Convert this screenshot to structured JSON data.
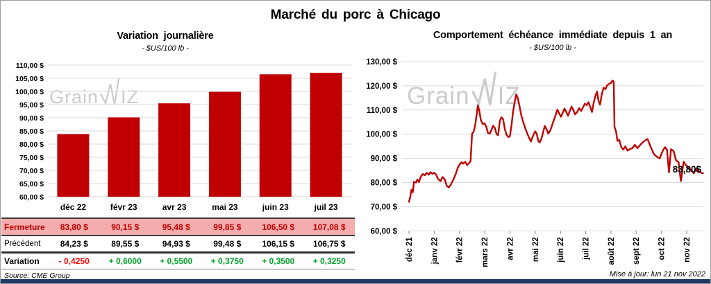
{
  "page": {
    "title": "Marché du porc à Chicago",
    "source": "Source: CME Group",
    "updated": "Mise à jour: lun 21 nov 2022"
  },
  "branding": {
    "prefix": "Grain",
    "suffix": "IZ",
    "watermark_name": "grainwiz"
  },
  "colors": {
    "series_red": "#c00000",
    "pink_row": "#f5acac",
    "negative_red": "#ff0000",
    "positive_green": "#00a228",
    "grid": "#d9d9d9",
    "tick": "#808080",
    "watermark": "#cbcbcb",
    "bottom_bar": "#1f3864"
  },
  "chart_data": [
    {
      "type": "bar",
      "title": "Variation journalière",
      "subtitle": "- $US/100 lb -",
      "categories": [
        "déc 22",
        "févr 23",
        "avr 23",
        "mai 23",
        "juin 23",
        "juil 23"
      ],
      "values": [
        83.8,
        90.15,
        95.48,
        99.85,
        106.5,
        107.08
      ],
      "ylim": [
        60,
        110
      ],
      "ytick_step": 5,
      "ytick_labels": [
        "60,00 $",
        "65,00 $",
        "70,00 $",
        "75,00 $",
        "80,00 $",
        "85,00 $",
        "90,00 $",
        "95,00 $",
        "100,00 $",
        "105,00 $",
        "110,00 $"
      ],
      "grid": true,
      "legend": "none"
    },
    {
      "type": "line",
      "title": "Comportement échéance immédiate depuis 1 an",
      "subtitle": "- $US/100 lb -",
      "x_tick_labels": [
        "déc 21",
        "janv 22",
        "févr 22",
        "mars 22",
        "avr 22",
        "mai 22",
        "juin 22",
        "juil 22",
        "août 22",
        "sept 22",
        "oct 22",
        "nov 22"
      ],
      "ylim": [
        60,
        130
      ],
      "ytick_step": 10,
      "ytick_labels": [
        "60,00 $",
        "70,00 $",
        "80,00 $",
        "90,00 $",
        "100,00 $",
        "110,00 $",
        "120,00 $",
        "130,00 $"
      ],
      "grid": true,
      "legend": "none",
      "annotation": {
        "text": "83,80$",
        "x": 11.5,
        "y": 83.8
      },
      "series": [
        {
          "name": "échéance immédiate ($US/100 lb)",
          "points": [
            [
              0.0,
              72.0
            ],
            [
              0.05,
              74.0
            ],
            [
              0.1,
              77.0
            ],
            [
              0.15,
              76.0
            ],
            [
              0.2,
              80.3
            ],
            [
              0.28,
              80.0
            ],
            [
              0.33,
              81.2
            ],
            [
              0.4,
              80.2
            ],
            [
              0.47,
              82.5
            ],
            [
              0.55,
              83.5
            ],
            [
              0.63,
              83.0
            ],
            [
              0.7,
              84.0
            ],
            [
              0.78,
              83.2
            ],
            [
              0.85,
              84.3
            ],
            [
              0.93,
              83.6
            ],
            [
              1.0,
              84.0
            ],
            [
              1.08,
              83.2
            ],
            [
              1.15,
              81.5
            ],
            [
              1.25,
              80.6
            ],
            [
              1.33,
              82.3
            ],
            [
              1.42,
              81.2
            ],
            [
              1.5,
              78.6
            ],
            [
              1.58,
              78.0
            ],
            [
              1.65,
              79.0
            ],
            [
              1.75,
              81.0
            ],
            [
              1.85,
              83.5
            ],
            [
              1.93,
              86.0
            ],
            [
              2.0,
              87.3
            ],
            [
              2.08,
              88.4
            ],
            [
              2.15,
              87.8
            ],
            [
              2.23,
              88.6
            ],
            [
              2.3,
              87.2
            ],
            [
              2.38,
              88.0
            ],
            [
              2.44,
              88.8
            ],
            [
              2.5,
              100.2
            ],
            [
              2.56,
              101.0
            ],
            [
              2.62,
              103.5
            ],
            [
              2.68,
              108.0
            ],
            [
              2.73,
              112.0
            ],
            [
              2.79,
              109.5
            ],
            [
              2.85,
              105.8
            ],
            [
              2.92,
              104.2
            ],
            [
              3.0,
              104.5
            ],
            [
              3.07,
              102.8
            ],
            [
              3.13,
              100.5
            ],
            [
              3.2,
              100.2
            ],
            [
              3.27,
              101.8
            ],
            [
              3.33,
              103.5
            ],
            [
              3.4,
              102.6
            ],
            [
              3.47,
              100.0
            ],
            [
              3.53,
              99.6
            ],
            [
              3.6,
              105.5
            ],
            [
              3.66,
              107.0
            ],
            [
              3.73,
              106.2
            ],
            [
              3.8,
              102.0
            ],
            [
              3.87,
              99.6
            ],
            [
              3.94,
              98.8
            ],
            [
              4.0,
              99.2
            ],
            [
              4.06,
              103.5
            ],
            [
              4.12,
              109.0
            ],
            [
              4.18,
              113.0
            ],
            [
              4.25,
              116.5
            ],
            [
              4.31,
              115.0
            ],
            [
              4.38,
              111.5
            ],
            [
              4.45,
              107.8
            ],
            [
              4.52,
              105.2
            ],
            [
              4.6,
              102.6
            ],
            [
              4.68,
              100.4
            ],
            [
              4.76,
              98.4
            ],
            [
              4.83,
              97.0
            ],
            [
              4.9,
              99.0
            ],
            [
              5.0,
              101.2
            ],
            [
              5.06,
              100.2
            ],
            [
              5.12,
              97.2
            ],
            [
              5.18,
              96.6
            ],
            [
              5.25,
              98.2
            ],
            [
              5.32,
              101.0
            ],
            [
              5.38,
              103.4
            ],
            [
              5.45,
              102.0
            ],
            [
              5.52,
              100.2
            ],
            [
              5.6,
              101.6
            ],
            [
              5.68,
              104.0
            ],
            [
              5.75,
              106.2
            ],
            [
              5.82,
              108.2
            ],
            [
              5.88,
              110.2
            ],
            [
              5.95,
              108.6
            ],
            [
              6.02,
              107.2
            ],
            [
              6.09,
              108.8
            ],
            [
              6.16,
              110.6
            ],
            [
              6.23,
              109.2
            ],
            [
              6.3,
              107.6
            ],
            [
              6.37,
              109.6
            ],
            [
              6.44,
              111.4
            ],
            [
              6.51,
              110.0
            ],
            [
              6.58,
              108.2
            ],
            [
              6.66,
              109.2
            ],
            [
              6.74,
              110.8
            ],
            [
              6.82,
              109.6
            ],
            [
              6.9,
              111.2
            ],
            [
              6.97,
              112.6
            ],
            [
              7.04,
              112.0
            ],
            [
              7.11,
              113.2
            ],
            [
              7.18,
              111.2
            ],
            [
              7.25,
              109.2
            ],
            [
              7.32,
              113.2
            ],
            [
              7.39,
              116.0
            ],
            [
              7.45,
              117.6
            ],
            [
              7.51,
              113.6
            ],
            [
              7.57,
              112.2
            ],
            [
              7.64,
              116.6
            ],
            [
              7.71,
              119.2
            ],
            [
              7.78,
              118.6
            ],
            [
              7.85,
              120.2
            ],
            [
              7.93,
              120.8
            ],
            [
              8.0,
              121.2
            ],
            [
              8.06,
              122.2
            ],
            [
              8.11,
              121.6
            ],
            [
              8.14,
              103.0
            ],
            [
              8.2,
              101.2
            ],
            [
              8.26,
              97.2
            ],
            [
              8.33,
              97.6
            ],
            [
              8.41,
              94.6
            ],
            [
              8.49,
              93.6
            ],
            [
              8.57,
              95.0
            ],
            [
              8.66,
              93.2
            ],
            [
              8.75,
              93.8
            ],
            [
              8.85,
              94.2
            ],
            [
              8.95,
              95.6
            ],
            [
              9.05,
              94.2
            ],
            [
              9.18,
              95.8
            ],
            [
              9.32,
              97.2
            ],
            [
              9.45,
              98.0
            ],
            [
              9.58,
              94.6
            ],
            [
              9.7,
              91.8
            ],
            [
              9.82,
              90.6
            ],
            [
              9.93,
              90.0
            ],
            [
              10.05,
              93.0
            ],
            [
              10.14,
              94.6
            ],
            [
              10.22,
              93.6
            ],
            [
              10.3,
              84.2
            ],
            [
              10.38,
              93.8
            ],
            [
              10.48,
              93.0
            ],
            [
              10.58,
              89.2
            ],
            [
              10.68,
              88.4
            ],
            [
              10.77,
              80.6
            ],
            [
              10.88,
              88.6
            ],
            [
              10.97,
              87.2
            ],
            [
              11.08,
              86.2
            ],
            [
              11.18,
              85.0
            ],
            [
              11.28,
              83.8
            ],
            [
              11.38,
              85.6
            ],
            [
              11.48,
              84.6
            ],
            [
              11.58,
              84.0
            ],
            [
              11.65,
              83.8
            ]
          ]
        }
      ]
    }
  ],
  "table": {
    "rows": [
      {
        "label": "Fermeture",
        "values": [
          "83,80 $",
          "90,15 $",
          "95,48 $",
          "99,85 $",
          "106,50 $",
          "107,08 $"
        ]
      },
      {
        "label": "Précédent",
        "values": [
          "84,23 $",
          "89,55 $",
          "94,93 $",
          "99,48 $",
          "106,15 $",
          "106,75 $"
        ]
      },
      {
        "label": "Variation",
        "values": [
          "- 0,4250",
          "+ 0,6000",
          "+ 0,5500",
          "+ 0,3750",
          "+ 0,3500",
          "+ 0,3250"
        ],
        "signs": [
          "neg",
          "pos",
          "pos",
          "pos",
          "pos",
          "pos"
        ]
      }
    ]
  }
}
